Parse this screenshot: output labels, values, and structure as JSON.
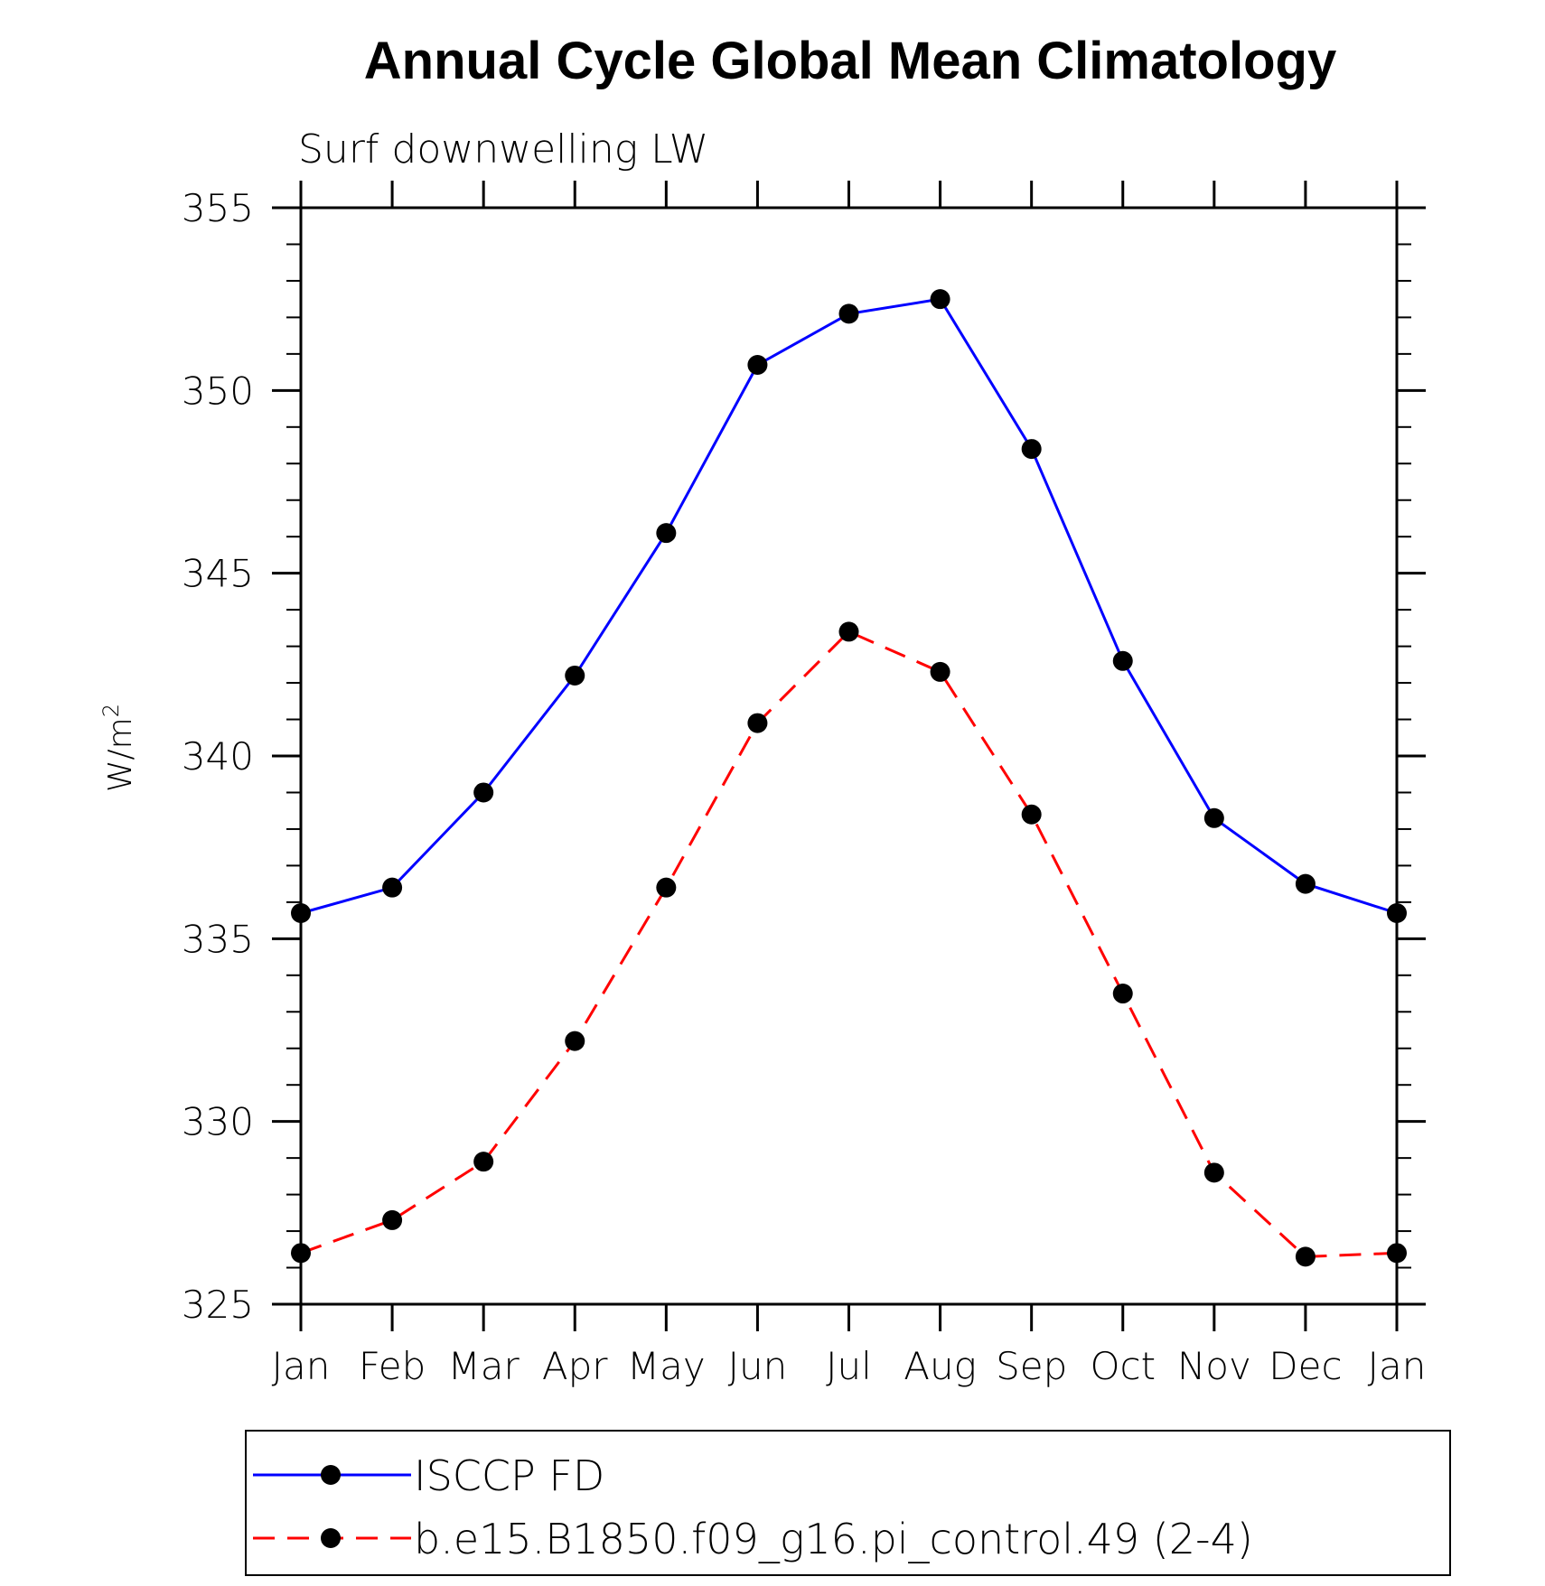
{
  "chart_data": {
    "type": "line",
    "title": "Annual Cycle Global Mean Climatology",
    "subtitle": "Surf downwelling LW",
    "ylabel": "W/m",
    "ylabel_sup": "2",
    "xlabel": "",
    "categories": [
      "Jan",
      "Feb",
      "Mar",
      "Apr",
      "May",
      "Jun",
      "Jul",
      "Aug",
      "Sep",
      "Oct",
      "Nov",
      "Dec",
      "Jan"
    ],
    "ylim": [
      325,
      355
    ],
    "yticks": [
      325,
      330,
      335,
      340,
      345,
      350,
      355
    ],
    "grid": false,
    "legend_position": "bottom",
    "series": [
      {
        "name": "ISCCP FD",
        "color": "#0000ff",
        "dash": "solid",
        "marker": "filled-circle",
        "values": [
          335.7,
          336.4,
          339.0,
          342.2,
          346.1,
          350.7,
          352.1,
          352.5,
          348.4,
          342.6,
          338.3,
          336.5,
          335.7
        ]
      },
      {
        "name": "b.e15.B1850.f09_g16.pi_control.49 (2-4)",
        "color": "#ff0000",
        "dash": "dashed",
        "marker": "filled-circle",
        "values": [
          326.4,
          327.3,
          328.9,
          332.2,
          336.4,
          340.9,
          343.4,
          342.3,
          338.4,
          333.5,
          328.6,
          326.3,
          326.4
        ]
      }
    ]
  }
}
